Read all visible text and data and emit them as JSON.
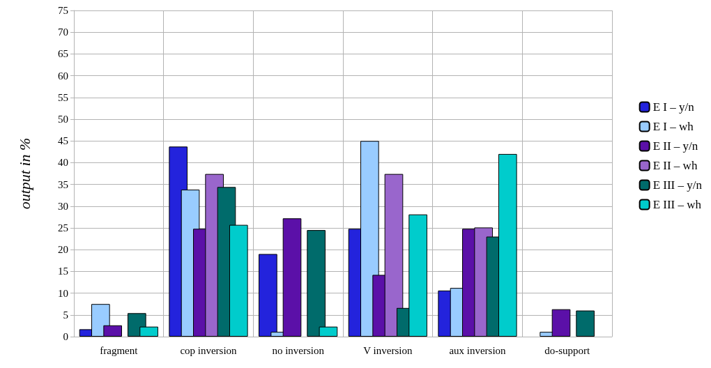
{
  "chart_data": {
    "type": "bar",
    "ylabel": "output in %",
    "categories": [
      "fragment",
      "cop inversion",
      "no inversion",
      "V inversion",
      "aux inversion",
      "do-support"
    ],
    "series": [
      {
        "name": "E I – y/n",
        "color": "#2323dc",
        "values": [
          1.7,
          43.7,
          19.0,
          24.8,
          10.6,
          null
        ]
      },
      {
        "name": "E I – wh",
        "color": "#99ccff",
        "values": [
          7.5,
          33.8,
          1.1,
          45.0,
          11.2,
          1.1
        ]
      },
      {
        "name": "E II – y/n",
        "color": "#5b10a8",
        "values": [
          2.6,
          24.8,
          27.2,
          14.2,
          24.8,
          6.3
        ]
      },
      {
        "name": "E II – wh",
        "color": "#9966cc",
        "values": [
          null,
          37.4,
          null,
          37.4,
          25.1,
          null
        ]
      },
      {
        "name": "E III – y/n",
        "color": "#006b6b",
        "values": [
          5.4,
          34.4,
          24.5,
          6.6,
          23.0,
          6.0
        ]
      },
      {
        "name": "E III – wh",
        "color": "#00cccc",
        "values": [
          2.3,
          25.7,
          2.3,
          28.1,
          42.0,
          null
        ]
      }
    ],
    "ylim": [
      0,
      75
    ],
    "yticks": [
      0,
      5,
      10,
      15,
      20,
      25,
      30,
      35,
      40,
      45,
      50,
      55,
      60,
      65,
      70,
      75
    ],
    "grid": true,
    "legend": "right"
  }
}
